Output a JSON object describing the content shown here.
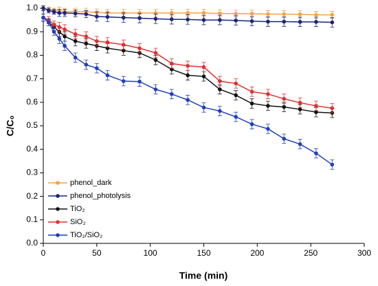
{
  "chart_data": {
    "type": "line",
    "x_label": "Time (min)",
    "y_label": "C/C₀",
    "x": [
      0,
      5,
      10,
      15,
      20,
      30,
      40,
      50,
      60,
      75,
      90,
      105,
      120,
      135,
      150,
      165,
      180,
      195,
      210,
      225,
      240,
      255,
      270
    ],
    "series": [
      {
        "name": "phenol_dark",
        "color": "#f5a340",
        "values": [
          1.0,
          0.995,
          0.99,
          0.99,
          0.985,
          0.985,
          0.985,
          0.982,
          0.98,
          0.98,
          0.98,
          0.98,
          0.98,
          0.98,
          0.98,
          0.978,
          0.977,
          0.977,
          0.975,
          0.975,
          0.974,
          0.972,
          0.972
        ],
        "errors": [
          0.01,
          0.01,
          0.01,
          0.015,
          0.015,
          0.015,
          0.015,
          0.015,
          0.015,
          0.015,
          0.015,
          0.015,
          0.015,
          0.015,
          0.015,
          0.015,
          0.015,
          0.015,
          0.015,
          0.015,
          0.015,
          0.015,
          0.015
        ]
      },
      {
        "name": "phenol_photolysis",
        "color": "#1a237e",
        "values": [
          1.0,
          0.99,
          0.985,
          0.98,
          0.98,
          0.978,
          0.975,
          0.965,
          0.963,
          0.96,
          0.958,
          0.955,
          0.953,
          0.952,
          0.95,
          0.95,
          0.948,
          0.945,
          0.943,
          0.943,
          0.942,
          0.942,
          0.94
        ],
        "errors": [
          0.01,
          0.01,
          0.01,
          0.015,
          0.015,
          0.015,
          0.015,
          0.02,
          0.02,
          0.02,
          0.02,
          0.02,
          0.02,
          0.02,
          0.02,
          0.02,
          0.02,
          0.02,
          0.02,
          0.02,
          0.02,
          0.02,
          0.02
        ]
      },
      {
        "name": "TiO₂",
        "color": "#111111",
        "values": [
          0.96,
          0.94,
          0.92,
          0.9,
          0.88,
          0.86,
          0.85,
          0.84,
          0.83,
          0.82,
          0.81,
          0.78,
          0.74,
          0.715,
          0.71,
          0.655,
          0.63,
          0.595,
          0.585,
          0.58,
          0.57,
          0.558,
          0.555
        ],
        "errors": [
          0.015,
          0.015,
          0.015,
          0.02,
          0.02,
          0.02,
          0.02,
          0.02,
          0.02,
          0.02,
          0.02,
          0.02,
          0.02,
          0.02,
          0.02,
          0.02,
          0.02,
          0.02,
          0.02,
          0.02,
          0.02,
          0.02,
          0.02
        ]
      },
      {
        "name": "SiO₂",
        "color": "#e03030",
        "values": [
          0.96,
          0.95,
          0.93,
          0.92,
          0.91,
          0.89,
          0.88,
          0.86,
          0.855,
          0.845,
          0.83,
          0.81,
          0.765,
          0.755,
          0.75,
          0.69,
          0.68,
          0.645,
          0.635,
          0.615,
          0.598,
          0.585,
          0.575
        ],
        "errors": [
          0.015,
          0.015,
          0.015,
          0.02,
          0.02,
          0.02,
          0.02,
          0.02,
          0.02,
          0.02,
          0.02,
          0.02,
          0.02,
          0.02,
          0.02,
          0.02,
          0.02,
          0.02,
          0.02,
          0.02,
          0.02,
          0.02,
          0.02
        ]
      },
      {
        "name": "TiO₂/SiO₂",
        "color": "#1f3fbf",
        "values": [
          0.96,
          0.94,
          0.9,
          0.87,
          0.84,
          0.79,
          0.76,
          0.745,
          0.715,
          0.69,
          0.688,
          0.655,
          0.635,
          0.61,
          0.578,
          0.563,
          0.538,
          0.507,
          0.487,
          0.445,
          0.422,
          0.383,
          0.335
        ],
        "errors": [
          0.015,
          0.015,
          0.015,
          0.02,
          0.02,
          0.02,
          0.02,
          0.02,
          0.02,
          0.02,
          0.02,
          0.02,
          0.02,
          0.02,
          0.02,
          0.02,
          0.02,
          0.02,
          0.02,
          0.02,
          0.02,
          0.02,
          0.02
        ]
      }
    ],
    "xlim": [
      0,
      300
    ],
    "xticks": [
      0,
      50,
      100,
      150,
      200,
      250,
      300
    ],
    "ylim": [
      0,
      1.0
    ],
    "yticks": [
      {
        "value": 0,
        "label": "0.0"
      },
      0.1,
      0.2,
      0.3,
      0.4,
      0.5,
      0.6,
      0.7,
      0.8,
      0.9,
      {
        "value": 1.0,
        "label": "1.0"
      }
    ],
    "grid": false,
    "legend": "lower left"
  }
}
